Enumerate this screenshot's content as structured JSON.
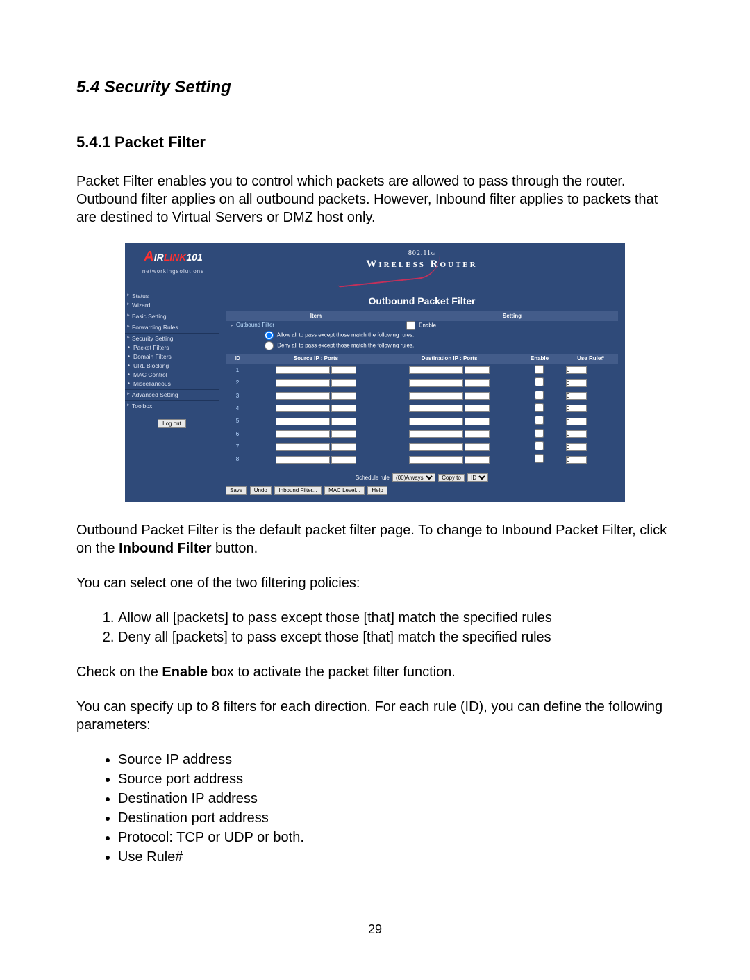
{
  "section": {
    "title": "5.4 Security Setting"
  },
  "subsection": {
    "title": "5.4.1 Packet Filter"
  },
  "paragraphs": {
    "intro": "Packet Filter enables you to control which packets are allowed to pass through the router. Outbound filter applies on all outbound packets. However, Inbound filter applies to packets that are destined to Virtual Servers or DMZ host only.",
    "outbound_default_1": "Outbound Packet Filter is the default packet filter page. To change to Inbound Packet Filter, click on the ",
    "outbound_default_bold": "Inbound Filter",
    "outbound_default_2": " button.",
    "policies_intro": "You can select one of the two filtering policies:",
    "enable_1": "Check on the ",
    "enable_bold": "Enable",
    "enable_2": " box to activate the packet filter function.",
    "filters_intro": "You can specify up to 8 filters for each direction. For each rule (ID), you can define the following parameters:"
  },
  "policies": [
    "Allow all [packets] to pass except those [that] match the specified rules",
    "Deny all [packets] to pass except those [that] match the specified rules"
  ],
  "params": [
    "Source IP address",
    "Source port address",
    "Destination IP address",
    "Destination port address",
    "Protocol: TCP or UDP or both.",
    "Use Rule#"
  ],
  "page_number": "29",
  "router": {
    "logo": {
      "tagline": "networkingsolutions"
    },
    "banner": {
      "top": "802.11g",
      "main": "Wireless Router"
    },
    "sidebar": {
      "items": [
        {
          "label": "Status",
          "type": "main"
        },
        {
          "label": "Wizard",
          "type": "main"
        },
        {
          "hr": true
        },
        {
          "label": "Basic Setting",
          "type": "main"
        },
        {
          "hr": true
        },
        {
          "label": "Forwarding Rules",
          "type": "main"
        },
        {
          "hr": true
        },
        {
          "label": "Security Setting",
          "type": "main"
        },
        {
          "label": "Packet Filters",
          "type": "sub"
        },
        {
          "label": "Domain Filters",
          "type": "sub"
        },
        {
          "label": "URL Blocking",
          "type": "sub"
        },
        {
          "label": "MAC Control",
          "type": "sub"
        },
        {
          "label": "Miscellaneous",
          "type": "sub"
        },
        {
          "hr": true
        },
        {
          "label": "Advanced Setting",
          "type": "main"
        },
        {
          "hr": true
        },
        {
          "label": "Toolbox",
          "type": "main"
        }
      ],
      "logout": "Log out"
    },
    "content": {
      "title": "Outbound Packet Filter",
      "headers": {
        "item": "Item",
        "setting": "Setting"
      },
      "outbound_label": "Outbound Filter",
      "enable_label": "Enable",
      "policy_allow": "Allow all to pass except those match the following rules.",
      "policy_deny": "Deny all to pass except those match the following rules.",
      "table_headers": {
        "id": "ID",
        "src": "Source IP : Ports",
        "dst": "Destination IP : Ports",
        "enable": "Enable",
        "use": "Use Rule#"
      },
      "rows": [
        {
          "id": "1",
          "use": "0"
        },
        {
          "id": "2",
          "use": "0"
        },
        {
          "id": "3",
          "use": "0"
        },
        {
          "id": "4",
          "use": "0"
        },
        {
          "id": "5",
          "use": "0"
        },
        {
          "id": "6",
          "use": "0"
        },
        {
          "id": "7",
          "use": "0"
        },
        {
          "id": "8",
          "use": "0"
        }
      ],
      "schedule": {
        "label": "Schedule rule",
        "value": "(00)Always",
        "copy": "Copy to",
        "copy_sel": "ID"
      },
      "buttons": {
        "save": "Save",
        "undo": "Undo",
        "inbound": "Inbound Filter...",
        "mac": "MAC Level...",
        "help": "Help"
      }
    },
    "colors": {
      "bg": "#2f4a79",
      "bar": "#435c8a",
      "text": "#ffffff",
      "link": "#bddfff",
      "swoosh": "#c4305a"
    }
  }
}
